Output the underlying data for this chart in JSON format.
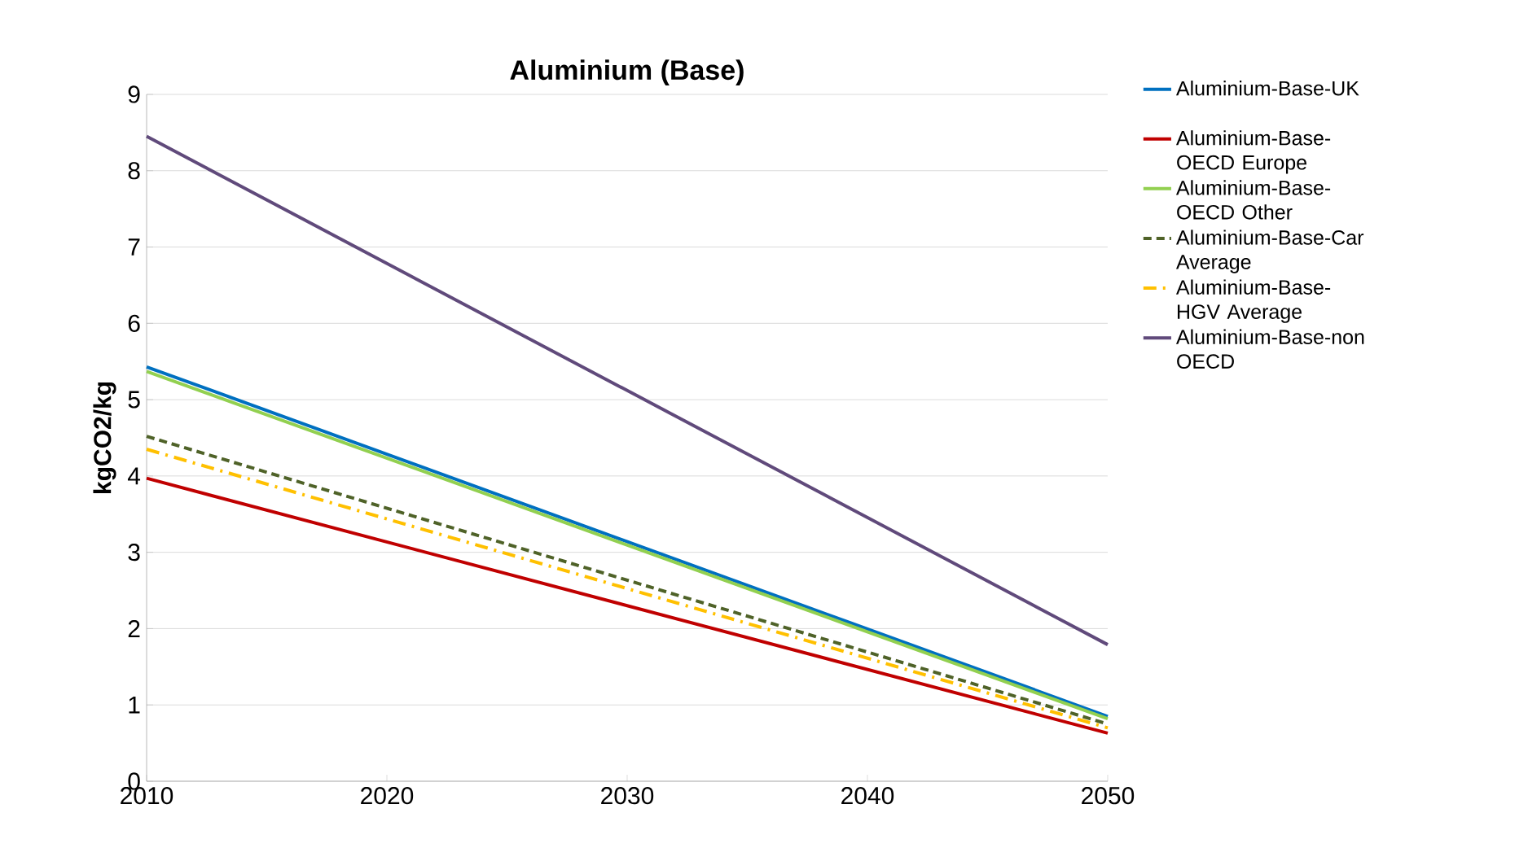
{
  "chart_data": {
    "type": "line",
    "title": "Aluminium (Base)",
    "ylabel": "kgCO2/kg",
    "x": [
      2010,
      2050
    ],
    "series": [
      {
        "name": "Aluminium-Base-UK",
        "color": "#0070c0",
        "values": [
          5.43,
          0.85
        ],
        "line_style": "solid"
      },
      {
        "name": "Aluminium-Base-OECD Europe",
        "color": "#c00000",
        "values": [
          3.97,
          0.63
        ],
        "line_style": "solid"
      },
      {
        "name": "Aluminium-Base-OECD Other",
        "color": "#92d050",
        "values": [
          5.37,
          0.82
        ],
        "line_style": "solid"
      },
      {
        "name": "Aluminium-Base-Car Average",
        "color": "#4f6228",
        "values": [
          4.52,
          0.75
        ],
        "line_style": "dashed"
      },
      {
        "name": "Aluminium-Base-HGV Average",
        "color": "#ffc000",
        "values": [
          4.35,
          0.7
        ],
        "line_style": "dashdot"
      },
      {
        "name": "Aluminium-Base-non OECD",
        "color": "#604a7b",
        "values": [
          8.45,
          1.79
        ],
        "line_style": "solid"
      }
    ],
    "xlim": [
      2010,
      2050
    ],
    "xticks": [
      2010,
      2020,
      2030,
      2040,
      2050
    ],
    "ylim": [
      0,
      9
    ],
    "yticks": [
      0,
      1,
      2,
      3,
      4,
      5,
      6,
      7,
      8,
      9
    ],
    "grid": "y",
    "legend": "right",
    "marker": "none"
  }
}
